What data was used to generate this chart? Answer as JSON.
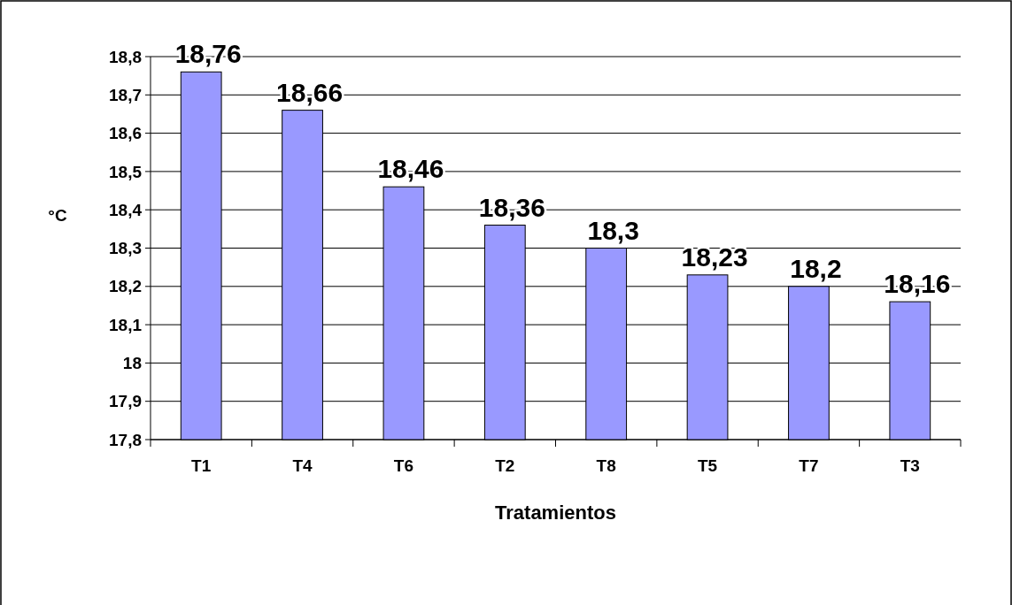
{
  "chart_data": {
    "type": "bar",
    "xlabel": "Tratamientos",
    "ylabel": "°C",
    "categories": [
      "T1",
      "T4",
      "T6",
      "T2",
      "T8",
      "T5",
      "T7",
      "T3"
    ],
    "values": [
      18.76,
      18.66,
      18.46,
      18.36,
      18.3,
      18.23,
      18.2,
      18.16
    ],
    "value_labels": [
      "18,76",
      "18,66",
      "18,46",
      "18,36",
      "18,3",
      "18,23",
      "18,2",
      "18,16"
    ],
    "color": "#9999ff",
    "ylim": [
      17.8,
      18.8
    ],
    "yticks": [
      {
        "value": 17.8,
        "label": "17,8"
      },
      {
        "value": 17.9,
        "label": "17,9"
      },
      {
        "value": 18,
        "label": "18"
      },
      {
        "value": 18.1,
        "label": "18,1"
      },
      {
        "value": 18.2,
        "label": "18,2"
      },
      {
        "value": 18.3,
        "label": "18,3"
      },
      {
        "value": 18.4,
        "label": "18,4"
      },
      {
        "value": 18.5,
        "label": "18,5"
      },
      {
        "value": 18.6,
        "label": "18,6"
      },
      {
        "value": 18.7,
        "label": "18,7"
      },
      {
        "value": 18.8,
        "label": "18,8"
      }
    ],
    "grid": "y"
  }
}
